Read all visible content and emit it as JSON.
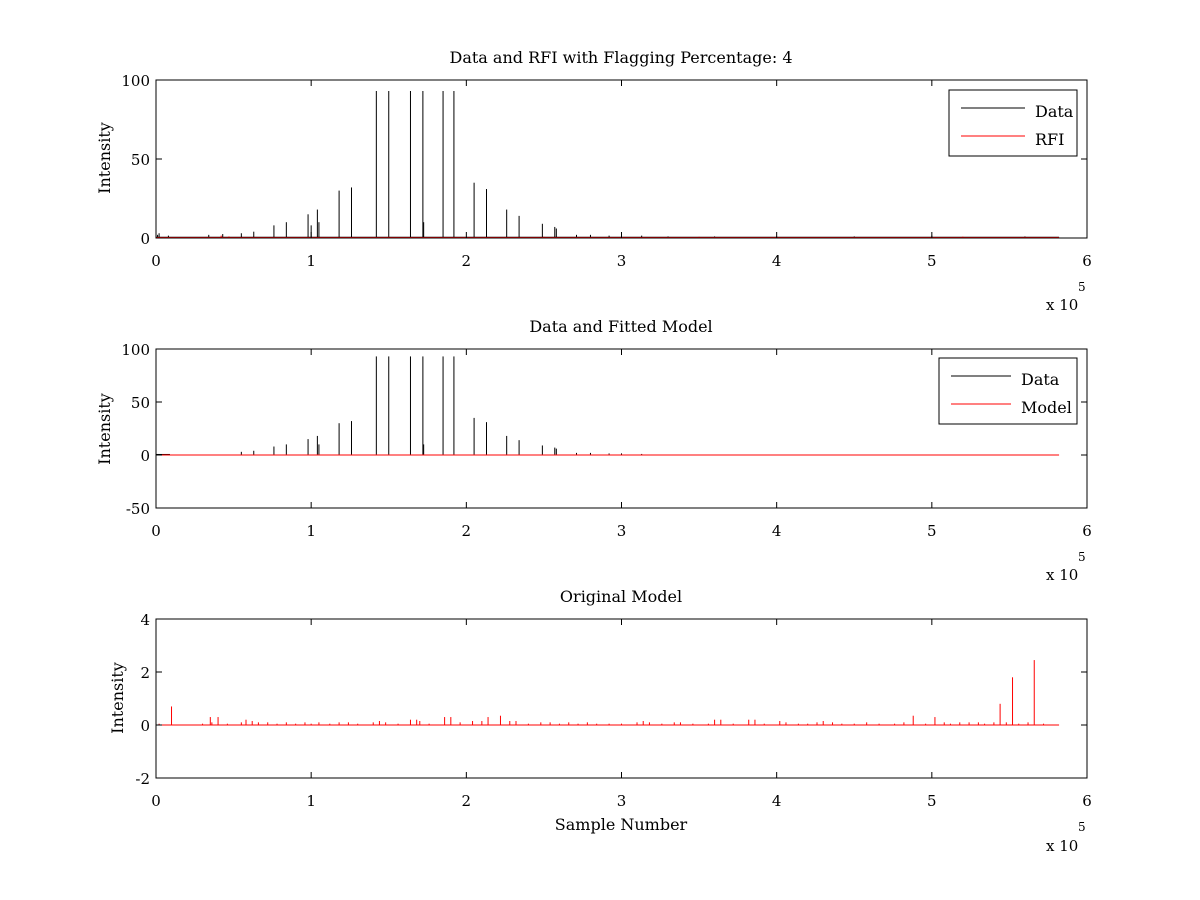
{
  "figure": {
    "colors": {
      "data": "#000000",
      "rfi": "#ff0000",
      "model": "#ff0000",
      "axes": "#000000",
      "background": "#ffffff"
    }
  },
  "chart_data": [
    {
      "type": "line",
      "title": "Data and RFI with Flagging Percentage: 4",
      "xlabel": "",
      "ylabel": "Intensity",
      "xlim": [
        0,
        600000
      ],
      "ylim": [
        0,
        100
      ],
      "xticks": [
        "0",
        "1",
        "2",
        "3",
        "4",
        "5",
        "6"
      ],
      "x_exponent_base": "x 10",
      "x_exponent_power": "5",
      "yticks": [
        "0",
        "50",
        "100"
      ],
      "ytick_values": [
        0,
        50,
        100
      ],
      "legend": {
        "position": "top-right",
        "entries": [
          "Data",
          "RFI"
        ]
      },
      "grid": false,
      "series": [
        {
          "name": "Data",
          "color": "#000000",
          "baseline": 0.5,
          "baseline_end": 582000,
          "spikes": [
            [
              1000,
              2
            ],
            [
              2000,
              3
            ],
            [
              8000,
              1.5
            ],
            [
              34000,
              2
            ],
            [
              43000,
              2.5
            ],
            [
              55000,
              3
            ],
            [
              63000,
              4
            ],
            [
              76000,
              8
            ],
            [
              84000,
              10
            ],
            [
              98000,
              15
            ],
            [
              100000,
              8
            ],
            [
              104000,
              18
            ],
            [
              105000,
              10
            ],
            [
              118000,
              30
            ],
            [
              126000,
              32
            ],
            [
              142000,
              93
            ],
            [
              150000,
              93
            ],
            [
              164000,
              93
            ],
            [
              172000,
              93
            ],
            [
              172500,
              10
            ],
            [
              185000,
              93
            ],
            [
              192000,
              93
            ],
            [
              205000,
              35
            ],
            [
              213000,
              31
            ],
            [
              226000,
              18
            ],
            [
              234000,
              14
            ],
            [
              249000,
              9
            ],
            [
              257000,
              7
            ],
            [
              258000,
              6
            ],
            [
              271000,
              2
            ],
            [
              280000,
              2
            ],
            [
              292000,
              1.5
            ],
            [
              300000,
              2.5
            ],
            [
              313000,
              1.5
            ],
            [
              330000,
              1
            ],
            [
              360000,
              1
            ],
            [
              400000,
              1
            ],
            [
              450000,
              1
            ],
            [
              500000,
              1.5
            ],
            [
              560000,
              1
            ]
          ]
        },
        {
          "name": "RFI",
          "color": "#ff0000",
          "baseline": 0.3,
          "baseline_end": 582000,
          "spikes": [
            [
              42000,
              1.5
            ],
            [
              47000,
              1
            ],
            [
              150000,
              0.8
            ],
            [
              250000,
              0.8
            ],
            [
              350000,
              0.8
            ],
            [
              380000,
              0.6
            ],
            [
              400000,
              0.9
            ],
            [
              450000,
              0.6
            ],
            [
              520000,
              0.9
            ],
            [
              560000,
              0.7
            ]
          ]
        }
      ]
    },
    {
      "type": "line",
      "title": "Data and Fitted Model",
      "xlabel": "",
      "ylabel": "Intensity",
      "xlim": [
        0,
        600000
      ],
      "ylim": [
        -50,
        100
      ],
      "xticks": [
        "0",
        "1",
        "2",
        "3",
        "4",
        "5",
        "6"
      ],
      "x_exponent_base": "x 10",
      "x_exponent_power": "5",
      "yticks": [
        "-50",
        "0",
        "50",
        "100"
      ],
      "ytick_values": [
        -50,
        0,
        50,
        100
      ],
      "legend": {
        "position": "top-right",
        "entries": [
          "Data",
          "Model"
        ]
      },
      "grid": false,
      "series": [
        {
          "name": "Data",
          "color": "#000000",
          "baseline": 0.5,
          "baseline_end": 9000,
          "spikes": [
            [
              55000,
              3
            ],
            [
              63000,
              4
            ],
            [
              76000,
              8
            ],
            [
              84000,
              10
            ],
            [
              98000,
              15
            ],
            [
              104000,
              18
            ],
            [
              105000,
              10
            ],
            [
              118000,
              30
            ],
            [
              126000,
              32
            ],
            [
              142000,
              93
            ],
            [
              150000,
              93
            ],
            [
              164000,
              93
            ],
            [
              172000,
              93
            ],
            [
              172500,
              10
            ],
            [
              185000,
              93
            ],
            [
              192000,
              93
            ],
            [
              205000,
              35
            ],
            [
              213000,
              31
            ],
            [
              226000,
              18
            ],
            [
              234000,
              14
            ],
            [
              249000,
              9
            ],
            [
              257000,
              7
            ],
            [
              258000,
              6
            ],
            [
              271000,
              2
            ],
            [
              280000,
              2
            ],
            [
              292000,
              1.5
            ],
            [
              300000,
              1.5
            ],
            [
              313000,
              1
            ]
          ]
        },
        {
          "name": "Model",
          "color": "#ff0000",
          "baseline": 0,
          "baseline_end": 582000,
          "spikes": []
        }
      ]
    },
    {
      "type": "line",
      "title": "Original Model",
      "xlabel": "Sample Number",
      "ylabel": "Intensity",
      "xlim": [
        0,
        600000
      ],
      "ylim": [
        -2,
        4
      ],
      "xticks": [
        "0",
        "1",
        "2",
        "3",
        "4",
        "5",
        "6"
      ],
      "x_exponent_base": "x 10",
      "x_exponent_power": "5",
      "yticks": [
        "-2",
        "0",
        "2",
        "4"
      ],
      "ytick_values": [
        -2,
        0,
        2,
        4
      ],
      "legend": null,
      "grid": false,
      "series": [
        {
          "name": "",
          "color": "#ff0000",
          "baseline": 0,
          "baseline_end": 582000,
          "spikes": [
            [
              2000,
              0.05
            ],
            [
              10000,
              0.7
            ],
            [
              30000,
              0.05
            ],
            [
              35000,
              0.3
            ],
            [
              36000,
              0.1
            ],
            [
              40000,
              0.3
            ],
            [
              46000,
              0.05
            ],
            [
              55000,
              0.1
            ],
            [
              58000,
              0.2
            ],
            [
              62000,
              0.15
            ],
            [
              66000,
              0.1
            ],
            [
              72000,
              0.1
            ],
            [
              78000,
              0.05
            ],
            [
              84000,
              0.1
            ],
            [
              90000,
              0.05
            ],
            [
              96000,
              0.1
            ],
            [
              100000,
              0.05
            ],
            [
              105000,
              0.1
            ],
            [
              112000,
              0.05
            ],
            [
              118000,
              0.1
            ],
            [
              124000,
              0.1
            ],
            [
              130000,
              0.05
            ],
            [
              140000,
              0.1
            ],
            [
              144000,
              0.15
            ],
            [
              148000,
              0.1
            ],
            [
              156000,
              0.05
            ],
            [
              164000,
              0.2
            ],
            [
              168000,
              0.2
            ],
            [
              170000,
              0.15
            ],
            [
              176000,
              0.05
            ],
            [
              186000,
              0.3
            ],
            [
              190000,
              0.3
            ],
            [
              196000,
              0.1
            ],
            [
              204000,
              0.15
            ],
            [
              210000,
              0.15
            ],
            [
              214000,
              0.3
            ],
            [
              222000,
              0.35
            ],
            [
              228000,
              0.15
            ],
            [
              232000,
              0.15
            ],
            [
              240000,
              0.05
            ],
            [
              248000,
              0.1
            ],
            [
              254000,
              0.1
            ],
            [
              260000,
              0.05
            ],
            [
              266000,
              0.1
            ],
            [
              272000,
              0.05
            ],
            [
              278000,
              0.1
            ],
            [
              284000,
              0.05
            ],
            [
              292000,
              0.05
            ],
            [
              300000,
              0.05
            ],
            [
              310000,
              0.1
            ],
            [
              314000,
              0.15
            ],
            [
              318000,
              0.1
            ],
            [
              326000,
              0.05
            ],
            [
              334000,
              0.1
            ],
            [
              338000,
              0.1
            ],
            [
              346000,
              0.05
            ],
            [
              356000,
              0.05
            ],
            [
              360000,
              0.2
            ],
            [
              364000,
              0.2
            ],
            [
              372000,
              0.05
            ],
            [
              382000,
              0.2
            ],
            [
              386000,
              0.2
            ],
            [
              392000,
              0.05
            ],
            [
              402000,
              0.15
            ],
            [
              406000,
              0.1
            ],
            [
              414000,
              0.05
            ],
            [
              420000,
              0.05
            ],
            [
              426000,
              0.1
            ],
            [
              430000,
              0.15
            ],
            [
              436000,
              0.1
            ],
            [
              442000,
              0.05
            ],
            [
              450000,
              0.05
            ],
            [
              458000,
              0.1
            ],
            [
              466000,
              0.05
            ],
            [
              476000,
              0.05
            ],
            [
              482000,
              0.1
            ],
            [
              488000,
              0.35
            ],
            [
              496000,
              0.05
            ],
            [
              502000,
              0.3
            ],
            [
              508000,
              0.1
            ],
            [
              512000,
              0.05
            ],
            [
              518000,
              0.1
            ],
            [
              524000,
              0.1
            ],
            [
              530000,
              0.1
            ],
            [
              534000,
              0.05
            ],
            [
              540000,
              0.1
            ],
            [
              544000,
              0.8
            ],
            [
              548000,
              0.1
            ],
            [
              552000,
              1.8
            ],
            [
              556000,
              0.05
            ],
            [
              562000,
              0.1
            ],
            [
              566000,
              2.45
            ],
            [
              572000,
              0.05
            ]
          ]
        }
      ]
    }
  ]
}
